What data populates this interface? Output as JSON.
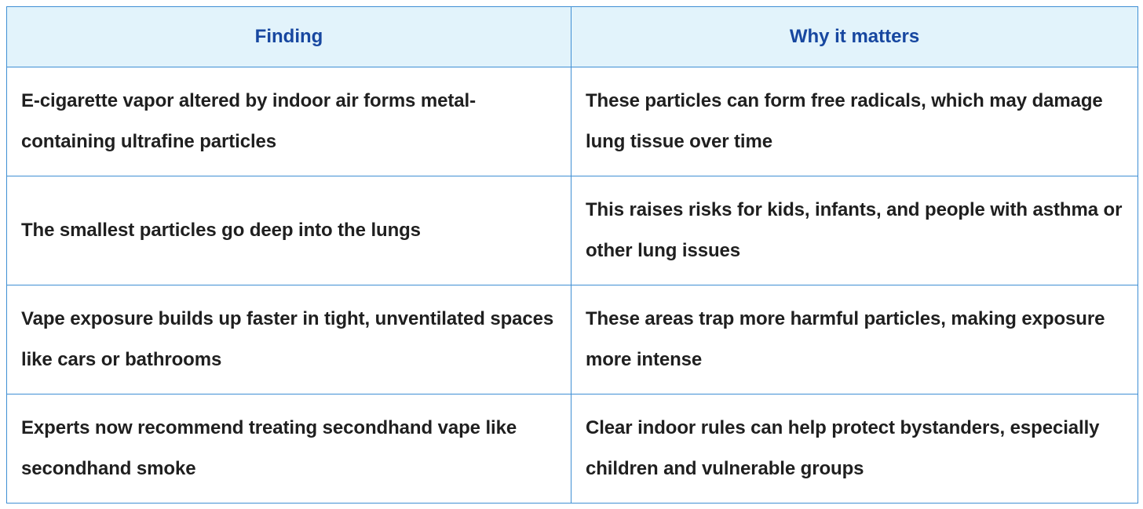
{
  "table": {
    "header": [
      "Finding",
      "Why it matters"
    ],
    "rows": [
      [
        "E-cigarette vapor altered by indoor air forms metal-containing ultrafine particles",
        "These particles can form free radicals, which may damage lung tissue over time"
      ],
      [
        "The smallest particles go deep into the lungs",
        "This raises risks for kids, infants, and people with asthma or other lung issues"
      ],
      [
        "Vape exposure builds up faster in tight, unventilated spaces like cars or bathrooms",
        "These areas trap more harmful particles, making exposure more intense"
      ],
      [
        "Experts now recommend treating secondhand vape like secondhand smoke",
        "Clear indoor rules can help protect bystanders, especially children and vulnerable groups"
      ]
    ]
  }
}
